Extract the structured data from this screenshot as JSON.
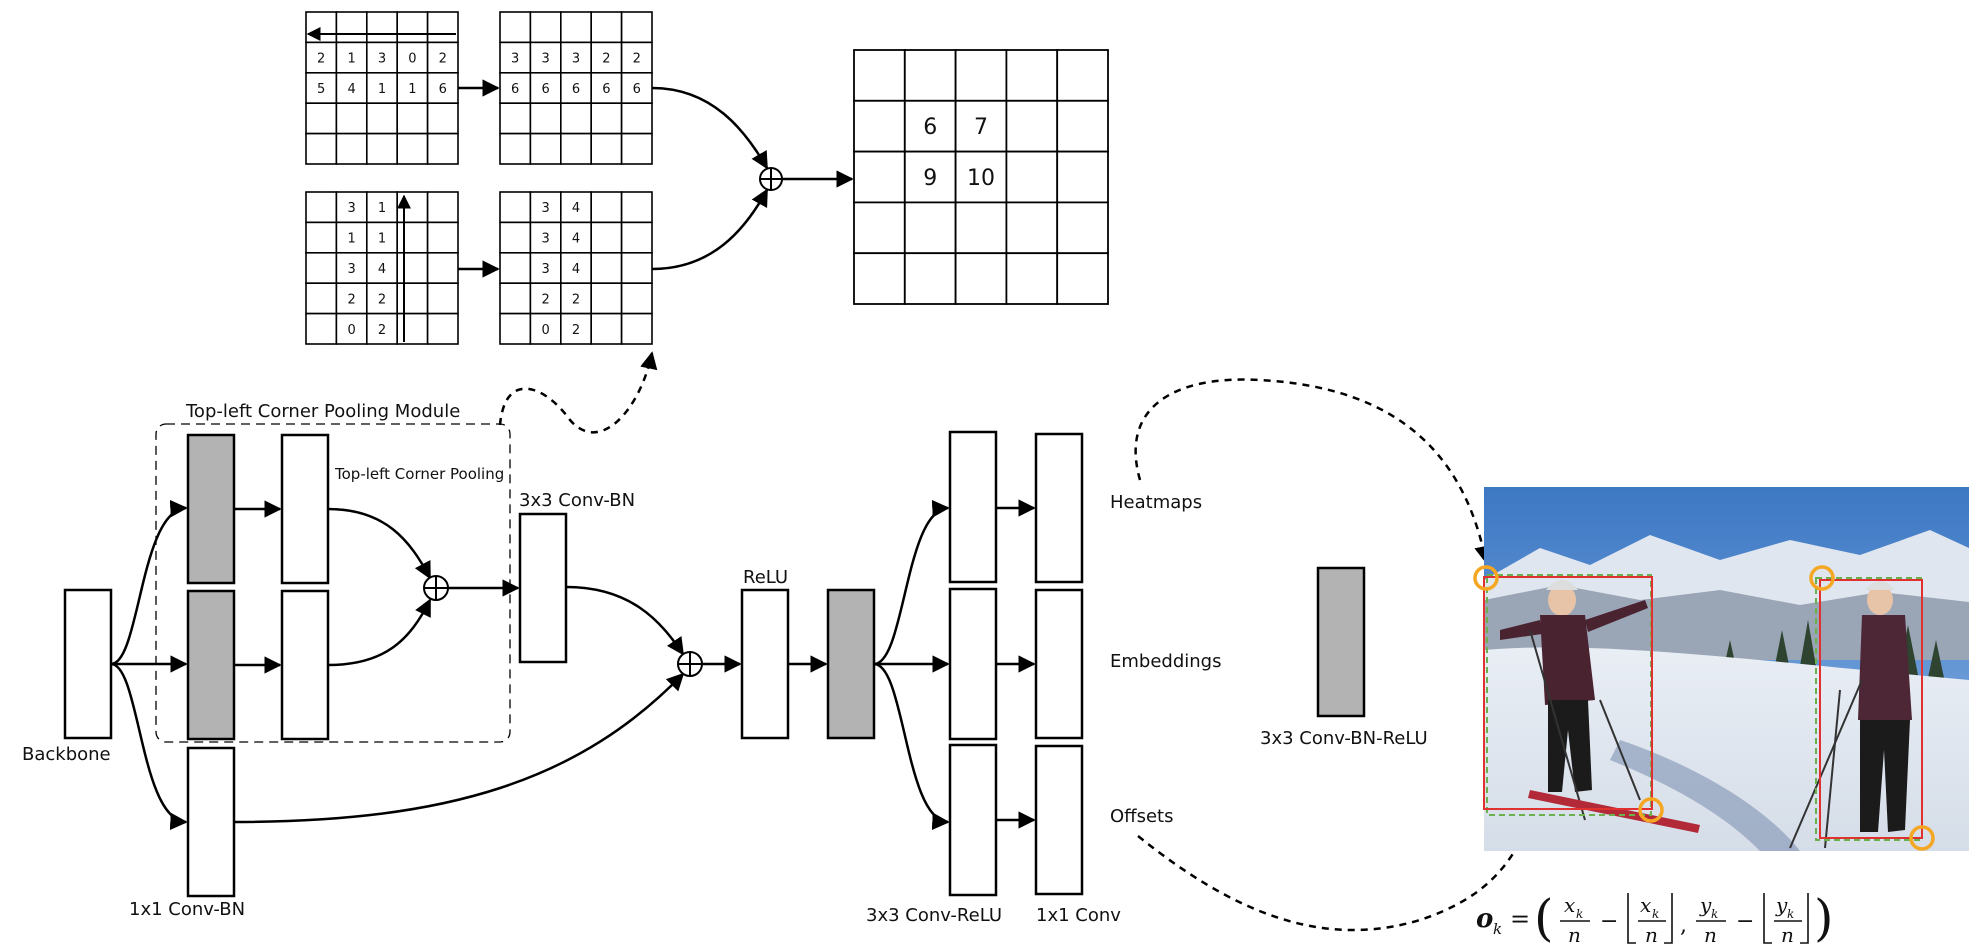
{
  "labels": {
    "module_title": "Top-left Corner Pooling Module",
    "corner_pooling": "Top-left Corner Pooling",
    "conv3_bn": "3x3 Conv-BN",
    "relu": "ReLU",
    "heatmaps": "Heatmaps",
    "embeddings": "Embeddings",
    "offsets": "Offsets",
    "backbone": "Backbone",
    "conv1_bn": "1x1 Conv-BN",
    "conv3_relu": "3x3 Conv-ReLU",
    "conv1": "1x1 Conv",
    "legend_box": "3x3 Conv-BN-ReLU"
  },
  "grids": {
    "grid_a": [
      [
        "",
        "",
        "",
        "",
        ""
      ],
      [
        "2",
        "1",
        "3",
        "0",
        "2"
      ],
      [
        "5",
        "4",
        "1",
        "1",
        "6"
      ],
      [
        "",
        "",
        "",
        "",
        ""
      ],
      [
        "",
        "",
        "",
        "",
        ""
      ]
    ],
    "grid_b": [
      [
        "",
        "",
        "",
        "",
        ""
      ],
      [
        "3",
        "3",
        "3",
        "2",
        "2"
      ],
      [
        "6",
        "6",
        "6",
        "6",
        "6"
      ],
      [
        "",
        "",
        "",
        "",
        ""
      ],
      [
        "",
        "",
        "",
        "",
        ""
      ]
    ],
    "grid_c": [
      [
        "",
        "3",
        "1",
        "",
        ""
      ],
      [
        "",
        "1",
        "1",
        "",
        ""
      ],
      [
        "",
        "3",
        "4",
        "",
        ""
      ],
      [
        "",
        "2",
        "2",
        "",
        ""
      ],
      [
        "",
        "0",
        "2",
        "",
        ""
      ]
    ],
    "grid_d": [
      [
        "",
        "3",
        "4",
        "",
        ""
      ],
      [
        "",
        "3",
        "4",
        "",
        ""
      ],
      [
        "",
        "3",
        "4",
        "",
        ""
      ],
      [
        "",
        "2",
        "2",
        "",
        ""
      ],
      [
        "",
        "0",
        "2",
        "",
        ""
      ]
    ],
    "grid_out": [
      [
        "",
        "",
        "",
        "",
        ""
      ],
      [
        "",
        "6",
        "7",
        "",
        ""
      ],
      [
        "",
        "9",
        "10",
        "",
        ""
      ],
      [
        "",
        "",
        "",
        "",
        ""
      ],
      [
        "",
        "",
        "",
        "",
        ""
      ]
    ]
  },
  "formula": {
    "lhs": "o",
    "lhs_sub": "k",
    "x_num": "x",
    "x_sub": "k",
    "den": "n",
    "y_num": "y",
    "y_sub": "k"
  },
  "colors": {
    "gray_box": "#b3b3b3",
    "bbox_red": "#e03030",
    "bbox_green": "#6ab04c",
    "corner_orange": "#f5a623"
  }
}
